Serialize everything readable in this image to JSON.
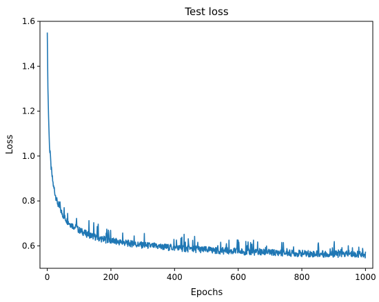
{
  "chart_data": {
    "type": "line",
    "title": "Test loss",
    "xlabel": "Epochs",
    "ylabel": "Loss",
    "xlim": [
      -23,
      1023
    ],
    "ylim": [
      0.5,
      1.6
    ],
    "xticks": [
      "0",
      "200",
      "400",
      "600",
      "800",
      "1000"
    ],
    "yticks": [
      "0.6",
      "0.8",
      "1.0",
      "1.2",
      "1.4",
      "1.6"
    ],
    "grid": false,
    "series": [
      {
        "color": "#1f77b4",
        "x": [
          0,
          2,
          4,
          6,
          8,
          10,
          12,
          15,
          20,
          25,
          30,
          35,
          40,
          45,
          50,
          60,
          70,
          80,
          90,
          100,
          120,
          140,
          160,
          180,
          200,
          250,
          300,
          350,
          400,
          450,
          500,
          550,
          600,
          650,
          700,
          750,
          800,
          850,
          900,
          950,
          1000
        ],
        "values": [
          1.55,
          1.3,
          1.18,
          1.08,
          1.02,
          0.98,
          0.95,
          0.91,
          0.86,
          0.83,
          0.8,
          0.78,
          0.765,
          0.75,
          0.735,
          0.715,
          0.7,
          0.69,
          0.68,
          0.67,
          0.655,
          0.645,
          0.635,
          0.628,
          0.622,
          0.612,
          0.603,
          0.597,
          0.591,
          0.586,
          0.582,
          0.578,
          0.575,
          0.572,
          0.57,
          0.568,
          0.566,
          0.564,
          0.563,
          0.562,
          0.561
        ]
      }
    ]
  }
}
